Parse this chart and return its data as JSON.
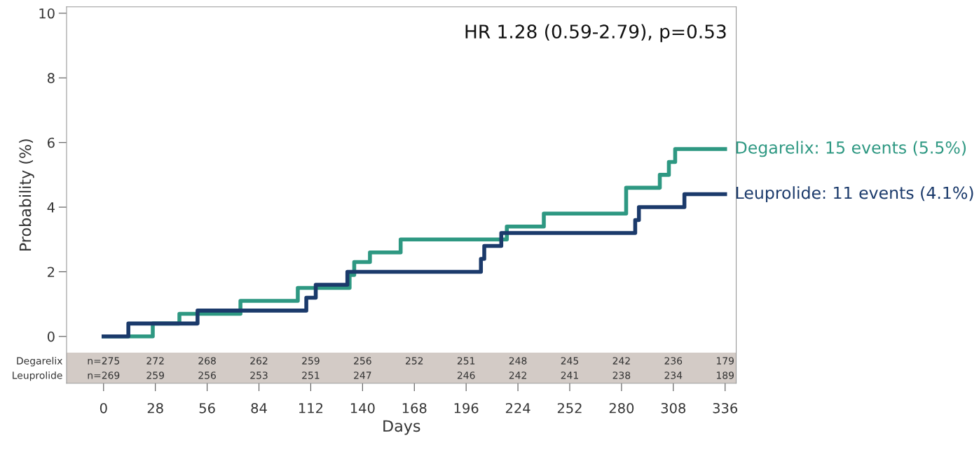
{
  "chart_data": {
    "type": "step",
    "xlabel": "Days",
    "ylabel": "Probability (%)",
    "xlim": [
      -20,
      342
    ],
    "ylim": [
      -1.45,
      10.2
    ],
    "xticks": [
      0,
      28,
      56,
      84,
      112,
      140,
      168,
      196,
      224,
      252,
      280,
      308,
      336
    ],
    "yticks": [
      0,
      2,
      4,
      6,
      8,
      10
    ],
    "grid": false,
    "legend": false,
    "line_style": "solid",
    "marker": "none",
    "bands": [
      {
        "axis": "y",
        "from": -1.45,
        "to": -0.5,
        "color": "#d3cbc6"
      }
    ],
    "series": [
      {
        "name": "Degarelix: 15 events (5.5%)",
        "color": "#2e9882",
        "x": [
          0,
          26.6,
          41,
          74,
          105,
          133,
          135.5,
          144,
          160.6,
          218,
          238,
          282.5,
          300.7,
          305.6,
          309,
          336
        ],
        "values": [
          0,
          0.4,
          0.7,
          1.1,
          1.5,
          1.9,
          2.3,
          2.6,
          3.0,
          3.4,
          3.8,
          4.6,
          5.0,
          5.4,
          5.8,
          5.8
        ]
      },
      {
        "name": "Leuprolide: 11 events (4.1%)",
        "color": "#1b3a6b",
        "x": [
          0,
          13.4,
          50.8,
          109.6,
          114.7,
          131.8,
          204,
          205.8,
          215,
          287.4,
          289.4,
          314,
          336
        ],
        "values": [
          0,
          0.4,
          0.8,
          1.2,
          1.6,
          2.0,
          2.4,
          2.8,
          3.2,
          3.6,
          4.0,
          4.4,
          4.4
        ]
      }
    ],
    "annotations": [
      "HR 1.28 (0.59-2.79), p=0.53",
      "Degarelix",
      "Leuprolide",
      "n=275",
      "272",
      "268",
      "262",
      "259",
      "256",
      "252",
      "251",
      "248",
      "245",
      "242",
      "236",
      "179",
      "n=269",
      "259",
      "256",
      "253",
      "251",
      "247",
      "246",
      "242",
      "241",
      "238",
      "234",
      "189"
    ]
  }
}
